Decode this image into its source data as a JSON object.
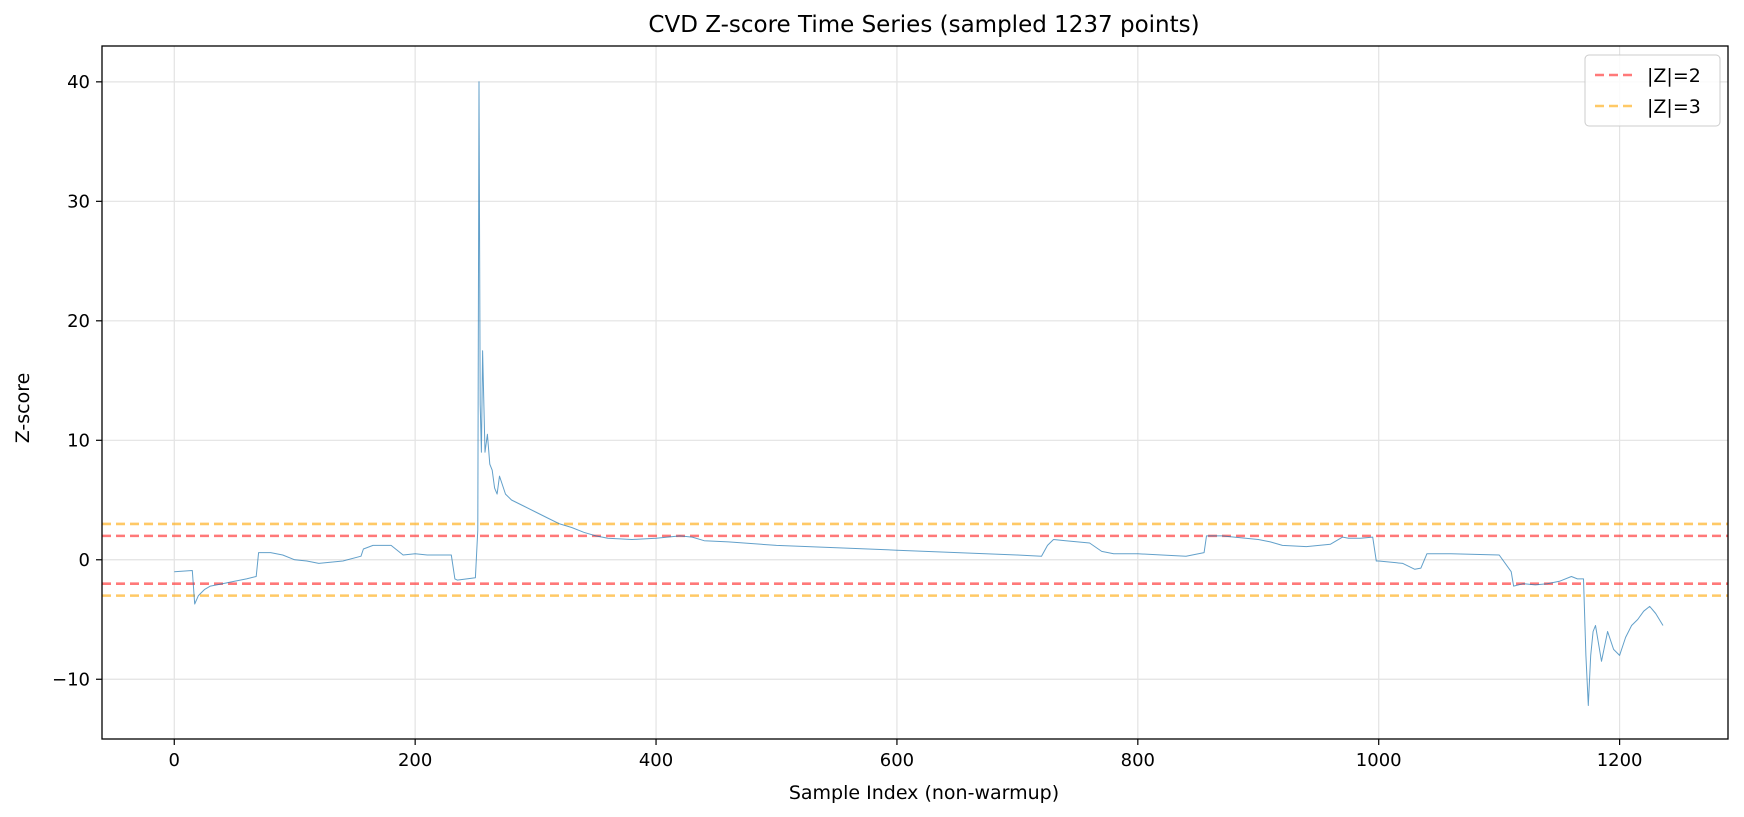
{
  "chart_data": {
    "type": "line",
    "title": "CVD Z-score Time Series (sampled 1237 points)",
    "xlabel": "Sample Index (non-warmup)",
    "ylabel": "Z-score",
    "xlim": [
      -60,
      1290
    ],
    "ylim": [
      -15,
      43
    ],
    "xticks": [
      0,
      200,
      400,
      600,
      800,
      1000,
      1200
    ],
    "yticks": [
      -10,
      0,
      10,
      20,
      30,
      40
    ],
    "grid": true,
    "legend_position": "top-right",
    "colors": {
      "series": "#1f77b4",
      "z2": "#ff4d4d",
      "z3": "#ffb733"
    },
    "thresholds": [
      {
        "name": "|Z|=2",
        "value": 2,
        "color": "#ff4d4d"
      },
      {
        "name": "|Z|=3",
        "value": 3,
        "color": "#ffb733"
      }
    ],
    "series": [
      {
        "x": [
          0,
          15,
          17,
          20,
          25,
          30,
          40,
          50,
          60,
          68,
          70,
          80,
          90,
          100,
          110,
          120,
          140,
          155,
          157,
          165,
          180,
          190,
          200,
          210,
          230,
          233,
          235,
          250,
          252,
          253,
          254,
          255,
          256,
          258,
          260,
          262,
          264,
          266,
          268,
          270,
          275,
          280,
          290,
          300,
          310,
          320,
          330,
          340,
          350,
          360,
          380,
          400,
          420,
          430,
          440,
          460,
          500,
          550,
          600,
          650,
          700,
          720,
          725,
          730,
          740,
          760,
          770,
          780,
          800,
          820,
          840,
          855,
          857,
          870,
          880,
          900,
          910,
          920,
          940,
          960,
          970,
          975,
          985,
          995,
          998,
          1000,
          1020,
          1030,
          1035,
          1040,
          1050,
          1060,
          1100,
          1110,
          1112,
          1120,
          1130,
          1140,
          1150,
          1160,
          1165,
          1170,
          1172,
          1174,
          1176,
          1178,
          1180,
          1185,
          1190,
          1195,
          1200,
          1205,
          1210,
          1215,
          1220,
          1225,
          1230,
          1236
        ],
        "y": [
          -1.0,
          -0.9,
          -3.7,
          -3.0,
          -2.5,
          -2.2,
          -2.0,
          -1.8,
          -1.6,
          -1.4,
          0.6,
          0.6,
          0.4,
          0.0,
          -0.1,
          -0.3,
          -0.1,
          0.3,
          0.9,
          1.2,
          1.2,
          0.4,
          0.5,
          0.4,
          0.4,
          -1.6,
          -1.7,
          -1.5,
          2.5,
          40.0,
          13.0,
          9.0,
          17.5,
          9.0,
          10.5,
          8.0,
          7.5,
          6.0,
          5.5,
          7.0,
          5.5,
          5.0,
          4.5,
          4.0,
          3.5,
          3.0,
          2.7,
          2.3,
          2.0,
          1.8,
          1.7,
          1.8,
          2.0,
          1.9,
          1.6,
          1.5,
          1.2,
          1.0,
          0.8,
          0.6,
          0.4,
          0.3,
          1.2,
          1.7,
          1.6,
          1.4,
          0.7,
          0.5,
          0.5,
          0.4,
          0.3,
          0.6,
          2.0,
          2.0,
          1.9,
          1.7,
          1.5,
          1.2,
          1.1,
          1.3,
          1.9,
          1.8,
          1.8,
          1.9,
          -0.1,
          -0.1,
          -0.3,
          -0.8,
          -0.7,
          0.5,
          0.5,
          0.5,
          0.4,
          -1.0,
          -2.2,
          -2.0,
          -2.1,
          -2.0,
          -1.8,
          -1.4,
          -1.6,
          -1.6,
          -8.0,
          -12.2,
          -8.0,
          -6.0,
          -5.5,
          -8.5,
          -6.0,
          -7.5,
          -8.0,
          -6.5,
          -5.5,
          -5.0,
          -4.3,
          -3.9,
          -4.5,
          -5.5
        ]
      }
    ]
  }
}
